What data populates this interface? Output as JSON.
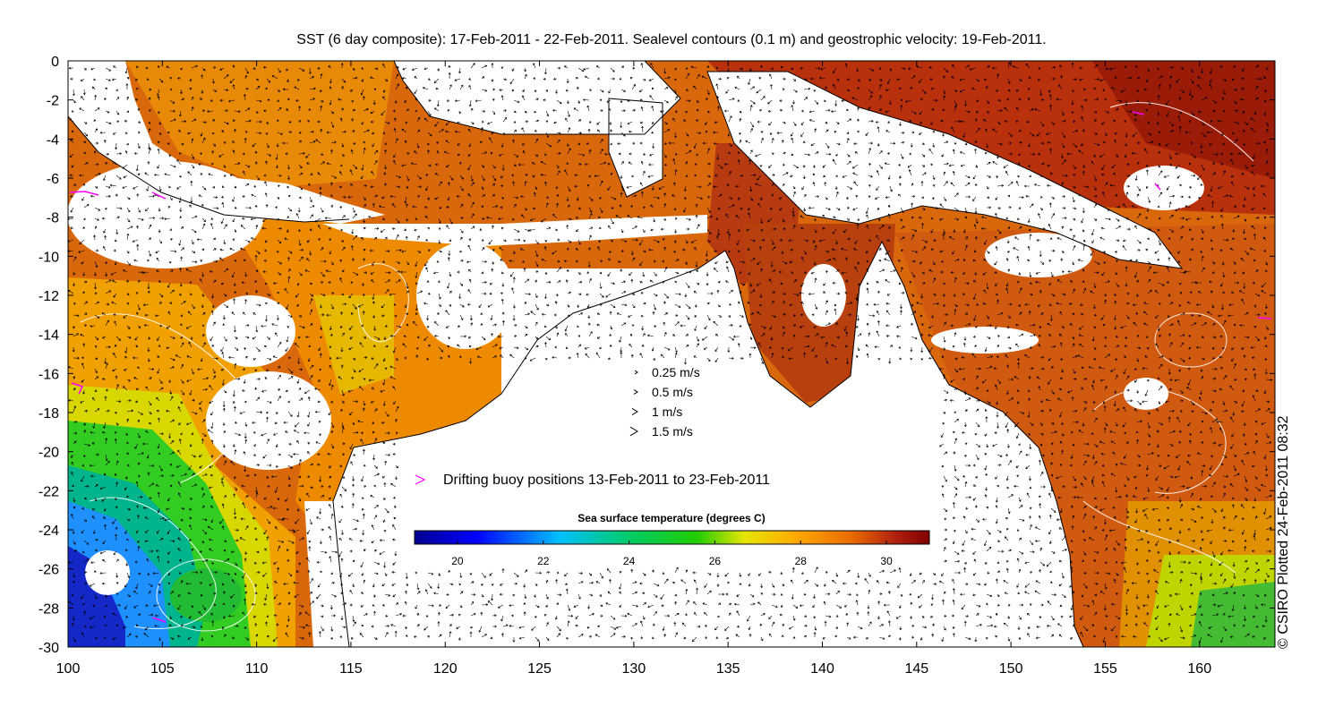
{
  "title": "SST (6 day composite): 17-Feb-2011 - 22-Feb-2011. Sealevel contours (0.1 m) and geostrophic velocity: 19-Feb-2011.",
  "credit": "© CSIRO Plotted 24-Feb-2011 08:32",
  "axes": {
    "x_ticks": [
      "100",
      "105",
      "110",
      "115",
      "120",
      "125",
      "130",
      "135",
      "140",
      "145",
      "150",
      "155",
      "160"
    ],
    "y_ticks": [
      "0",
      "-2",
      "-4",
      "-6",
      "-8",
      "-10",
      "-12",
      "-14",
      "-16",
      "-18",
      "-20",
      "-22",
      "-24",
      "-26",
      "-28",
      "-30"
    ],
    "lon_range": [
      100,
      164
    ],
    "lat_range": [
      -30,
      0
    ]
  },
  "velocity_legend": [
    {
      "label": "0.25 m/s",
      "speed": 0.25
    },
    {
      "label": "0.5 m/s",
      "speed": 0.5
    },
    {
      "label": "1 m/s",
      "speed": 1
    },
    {
      "label": "1.5 m/s",
      "speed": 1.5
    }
  ],
  "buoy_legend": {
    "label": "Drifting buoy positions 13-Feb-2011 to 23-Feb-2011",
    "color": "#ff00ff"
  },
  "colorbar": {
    "title": "Sea surface temperature (degrees C)",
    "range": [
      19,
      31
    ],
    "ticks": [
      "20",
      "22",
      "24",
      "26",
      "28",
      "30"
    ],
    "colors": [
      "#00008f",
      "#0000ff",
      "#00bfff",
      "#00cc66",
      "#22cc00",
      "#e6e600",
      "#ffaa00",
      "#e86a00",
      "#b3240f",
      "#800000"
    ]
  },
  "colors": {
    "land": "#ffffff",
    "cloud": "#ffffff",
    "coast": "#000000",
    "contour": "#ffffff"
  }
}
